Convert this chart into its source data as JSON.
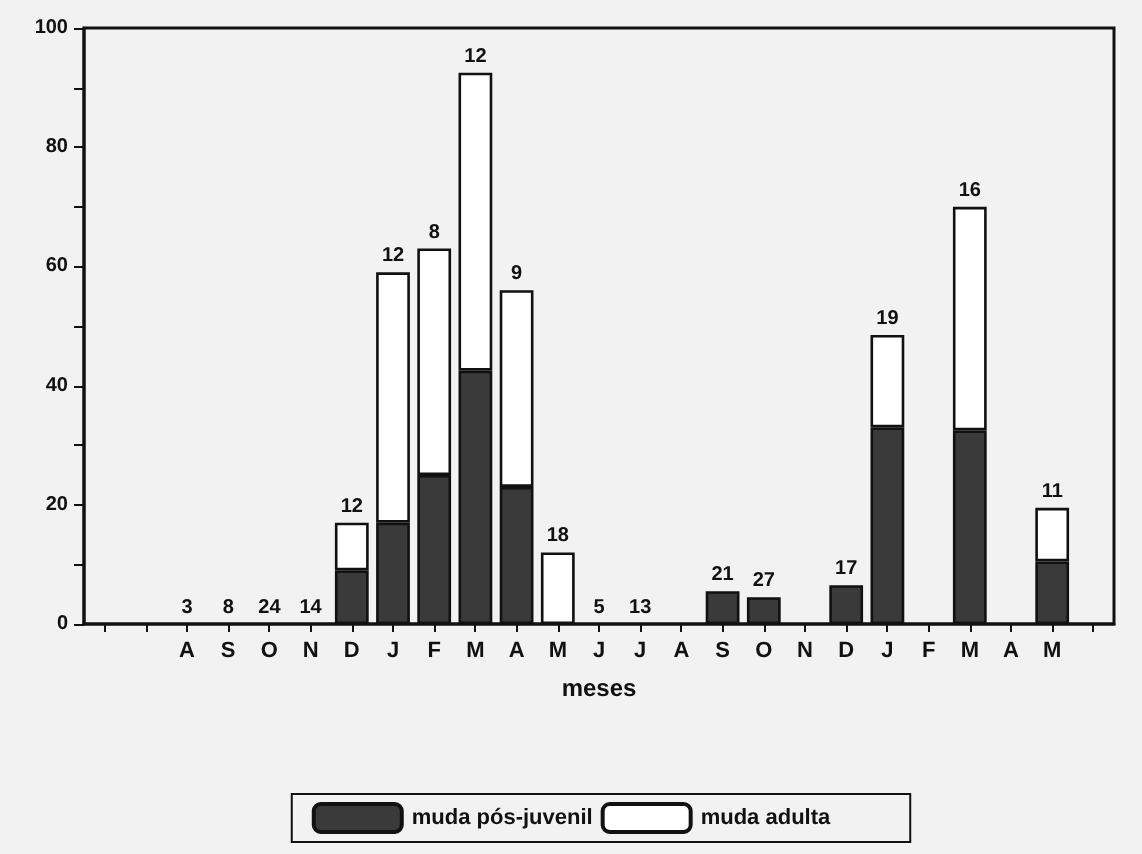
{
  "chart_data": {
    "type": "bar",
    "stacked": true,
    "xlabel": "meses",
    "categories": [
      null,
      null,
      "A",
      "S",
      "O",
      "N",
      "D",
      "J",
      "F",
      "M",
      "A",
      "M",
      "J",
      "J",
      "A",
      "S",
      "O",
      "N",
      "D",
      "J",
      "F",
      "M",
      "A",
      "M",
      null
    ],
    "series": [
      {
        "name": "muda pós-juvenil",
        "color": "#3a3a3a",
        "values": [
          null,
          null,
          null,
          null,
          null,
          null,
          9,
          17,
          25,
          42.5,
          23,
          null,
          null,
          null,
          null,
          5.5,
          4.5,
          null,
          6.5,
          33,
          null,
          32.5,
          null,
          10.5,
          null
        ]
      },
      {
        "name": "muda adulta",
        "color": "#ffffff",
        "values": [
          null,
          null,
          null,
          null,
          null,
          null,
          8,
          42,
          38,
          50,
          33,
          12,
          null,
          null,
          null,
          null,
          null,
          null,
          null,
          15.5,
          null,
          37.5,
          null,
          9,
          null
        ]
      }
    ],
    "annotations": [
      "3",
      "8",
      "24",
      "14",
      "12",
      "12",
      "8",
      "12",
      "9",
      "18",
      "5",
      "13",
      "21",
      "27",
      "17",
      "19",
      "16",
      "11"
    ],
    "ylim": [
      0,
      100
    ],
    "yticks": [
      0,
      {
        "value": 10,
        "label": null
      },
      20,
      {
        "value": 30,
        "label": null
      },
      40,
      {
        "value": 50,
        "label": null
      },
      60,
      {
        "value": 70,
        "label": null
      },
      80,
      {
        "value": 90,
        "label": null
      },
      100
    ],
    "grid": false,
    "legend": "bottom"
  }
}
